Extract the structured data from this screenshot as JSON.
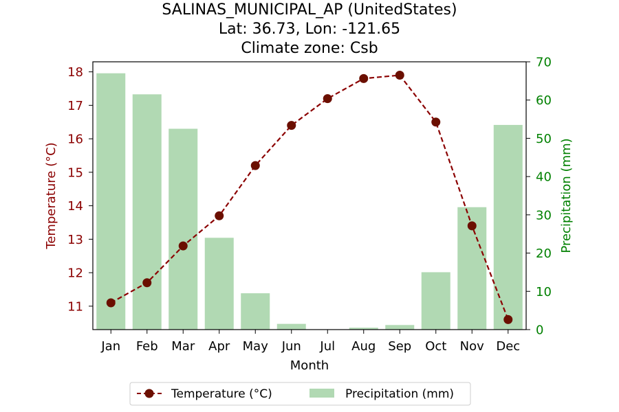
{
  "chart_data": {
    "type": "bar+line",
    "title_lines": [
      "SALINAS_MUNICIPAL_AP (UnitedStates)",
      "Lat: 36.73, Lon: -121.65",
      "Climate zone: Csb"
    ],
    "xlabel": "Month",
    "categories": [
      "Jan",
      "Feb",
      "Mar",
      "Apr",
      "May",
      "Jun",
      "Jul",
      "Aug",
      "Sep",
      "Oct",
      "Nov",
      "Dec"
    ],
    "y_left": {
      "label": "Temperature (°C)",
      "ylim": [
        10.3,
        18.3
      ],
      "ticks": [
        11,
        12,
        13,
        14,
        15,
        16,
        17,
        18
      ],
      "color": "#8b0000"
    },
    "y_right": {
      "label": "Precipitation (mm)",
      "ylim": [
        0,
        70
      ],
      "ticks": [
        0,
        10,
        20,
        30,
        40,
        50,
        60,
        70
      ],
      "color": "#008000"
    },
    "series": [
      {
        "name": "Temperature (°C)",
        "type": "line",
        "axis": "left",
        "style": "dashed",
        "marker": "circle",
        "color": "#8b0000",
        "marker_color": "#6b0f00",
        "values": [
          11.1,
          11.7,
          12.8,
          13.7,
          15.2,
          16.4,
          17.2,
          17.8,
          17.9,
          16.5,
          13.4,
          10.6
        ]
      },
      {
        "name": "Precipitation (mm)",
        "type": "bar",
        "axis": "right",
        "color": "#b1d9b3",
        "values": [
          67,
          61.5,
          52.5,
          24,
          9.5,
          1.5,
          0,
          0.5,
          1.2,
          15,
          32,
          53.5
        ]
      }
    ],
    "legend": {
      "placement": "bottom-center",
      "entries": [
        "Temperature (°C)",
        "Precipitation (mm)"
      ]
    },
    "grid": false
  }
}
